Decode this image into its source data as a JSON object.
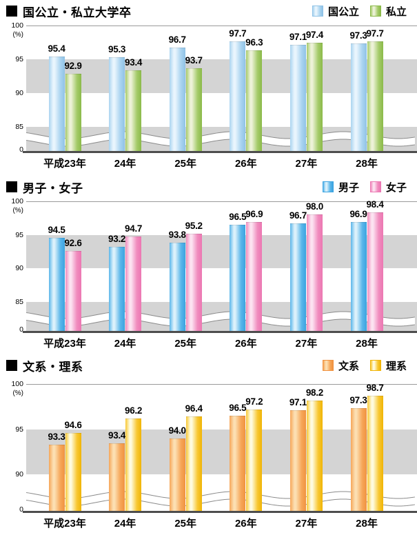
{
  "page": {
    "background": "#ffffff"
  },
  "palette": {
    "band_gray": "#d4d4d4",
    "axis": "#4d4d4d",
    "gridline": "#999999",
    "wave_edge": "#8a8a8a",
    "title_bullet": "#000000",
    "text": "#000000"
  },
  "chart_data": [
    {
      "type": "bar",
      "title": "国公立・私立大学卒",
      "unit_label": "(%)",
      "categories": [
        "平成23年",
        "24年",
        "25年",
        "26年",
        "27年",
        "28年"
      ],
      "series": [
        {
          "name": "国公立",
          "values": [
            95.4,
            95.3,
            96.7,
            97.7,
            97.1,
            97.3
          ],
          "color_main": "#aad4f0",
          "color_light": "#e9f5fd",
          "color_dark": "#8fc2e6"
        },
        {
          "name": "私立",
          "values": [
            92.9,
            93.4,
            93.7,
            96.3,
            97.4,
            97.7
          ],
          "color_main": "#a5cb6a",
          "color_light": "#edf2d8",
          "color_dark": "#8bba49"
        }
      ],
      "yticks": [
        "100",
        "95",
        "90",
        "85"
      ],
      "baseline_label": "0",
      "ylim": [
        0,
        100
      ],
      "axis_break": true,
      "grid": "alternating-bands",
      "legend_position": "top-right"
    },
    {
      "type": "bar",
      "title": "男子・女子",
      "unit_label": "(%)",
      "categories": [
        "平成23年",
        "24年",
        "25年",
        "26年",
        "27年",
        "28年"
      ],
      "series": [
        {
          "name": "男子",
          "values": [
            94.5,
            93.2,
            93.8,
            96.5,
            96.7,
            96.9
          ],
          "color_main": "#5ab6ea",
          "color_light": "#dcf1fb",
          "color_dark": "#3ba3e0"
        },
        {
          "name": "女子",
          "values": [
            92.6,
            94.7,
            95.2,
            96.9,
            98.0,
            98.4
          ],
          "color_main": "#f08cbe",
          "color_light": "#fce3f1",
          "color_dark": "#ec77b2"
        }
      ],
      "yticks": [
        "100",
        "95",
        "90",
        "85"
      ],
      "baseline_label": "0",
      "ylim": [
        0,
        100
      ],
      "axis_break": true,
      "grid": "alternating-bands",
      "legend_position": "top-right"
    },
    {
      "type": "bar",
      "title": "文系・理系",
      "unit_label": "(%)",
      "categories": [
        "平成23年",
        "24年",
        "25年",
        "26年",
        "27年",
        "28年"
      ],
      "series": [
        {
          "name": "文系",
          "values": [
            93.3,
            93.4,
            94.0,
            96.5,
            97.1,
            97.3
          ],
          "color_main": "#f6a658",
          "color_light": "#fcdfb2",
          "color_dark": "#f09240"
        },
        {
          "name": "理系",
          "values": [
            94.6,
            96.2,
            96.4,
            97.2,
            98.2,
            98.7
          ],
          "color_main": "#f8c833",
          "color_light": "#fefbe0",
          "color_dark": "#f0b406"
        }
      ],
      "yticks": [
        "100",
        "95",
        "90"
      ],
      "baseline_label": "0",
      "ylim": [
        0,
        100
      ],
      "axis_break": true,
      "grid": "alternating-bands",
      "legend_position": "top-right"
    }
  ]
}
